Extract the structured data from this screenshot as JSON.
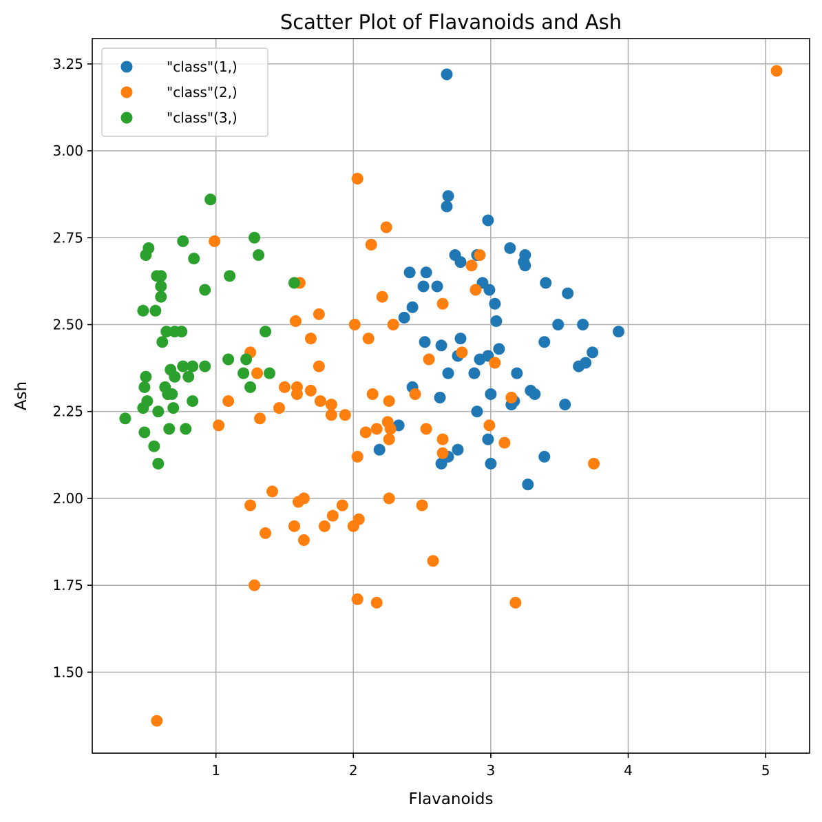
{
  "chart_data": {
    "type": "scatter",
    "title": "Scatter Plot of Flavanoids and Ash",
    "xlabel": "Flavanoids",
    "ylabel": "Ash",
    "xlim": [
      0.1,
      5.32
    ],
    "ylim": [
      1.267,
      3.323
    ],
    "xticks": [
      1,
      2,
      3,
      4,
      5
    ],
    "xtick_labels": [
      "1",
      "2",
      "3",
      "4",
      "5"
    ],
    "yticks": [
      1.5,
      1.75,
      2.0,
      2.25,
      2.5,
      2.75,
      3.0,
      3.25
    ],
    "ytick_labels": [
      "1.50",
      "1.75",
      "2.00",
      "2.25",
      "2.50",
      "2.75",
      "3.00",
      "3.25"
    ],
    "grid": true,
    "legend_position": "top-left",
    "series": [
      {
        "name": "\"class\"(1,)",
        "color": "#1f77b4",
        "points": [
          [
            2.68,
            3.22
          ],
          [
            2.69,
            2.87
          ],
          [
            2.68,
            2.84
          ],
          [
            2.98,
            2.8
          ],
          [
            3.14,
            2.72
          ],
          [
            3.25,
            2.7
          ],
          [
            2.74,
            2.7
          ],
          [
            2.9,
            2.7
          ],
          [
            2.78,
            2.68
          ],
          [
            3.24,
            2.68
          ],
          [
            3.25,
            2.67
          ],
          [
            2.41,
            2.65
          ],
          [
            2.53,
            2.65
          ],
          [
            2.94,
            2.62
          ],
          [
            3.4,
            2.62
          ],
          [
            2.51,
            2.61
          ],
          [
            2.61,
            2.61
          ],
          [
            2.99,
            2.6
          ],
          [
            3.56,
            2.59
          ],
          [
            3.03,
            2.56
          ],
          [
            2.43,
            2.55
          ],
          [
            2.37,
            2.52
          ],
          [
            3.04,
            2.51
          ],
          [
            3.49,
            2.5
          ],
          [
            3.67,
            2.5
          ],
          [
            3.93,
            2.48
          ],
          [
            2.78,
            2.46
          ],
          [
            2.52,
            2.45
          ],
          [
            3.39,
            2.45
          ],
          [
            2.64,
            2.44
          ],
          [
            3.06,
            2.43
          ],
          [
            3.74,
            2.42
          ],
          [
            2.76,
            2.41
          ],
          [
            2.98,
            2.41
          ],
          [
            2.92,
            2.4
          ],
          [
            3.69,
            2.39
          ],
          [
            3.64,
            2.38
          ],
          [
            2.69,
            2.36
          ],
          [
            2.88,
            2.36
          ],
          [
            3.19,
            2.36
          ],
          [
            2.43,
            2.32
          ],
          [
            3.29,
            2.31
          ],
          [
            3.0,
            2.3
          ],
          [
            3.32,
            2.3
          ],
          [
            2.63,
            2.29
          ],
          [
            3.17,
            2.28
          ],
          [
            3.15,
            2.27
          ],
          [
            3.54,
            2.27
          ],
          [
            2.9,
            2.25
          ],
          [
            2.33,
            2.21
          ],
          [
            2.98,
            2.17
          ],
          [
            2.19,
            2.14
          ],
          [
            2.76,
            2.14
          ],
          [
            3.39,
            2.12
          ],
          [
            2.69,
            2.12
          ],
          [
            2.64,
            2.1
          ],
          [
            3.0,
            2.1
          ],
          [
            3.27,
            2.04
          ]
        ]
      },
      {
        "name": "\"class\"(2,)",
        "color": "#ff7f0e",
        "points": [
          [
            5.08,
            3.23
          ],
          [
            2.03,
            2.92
          ],
          [
            2.24,
            2.78
          ],
          [
            0.99,
            2.74
          ],
          [
            2.13,
            2.73
          ],
          [
            2.92,
            2.7
          ],
          [
            2.86,
            2.67
          ],
          [
            1.61,
            2.62
          ],
          [
            2.89,
            2.6
          ],
          [
            2.21,
            2.58
          ],
          [
            2.65,
            2.56
          ],
          [
            1.75,
            2.53
          ],
          [
            1.58,
            2.51
          ],
          [
            2.01,
            2.5
          ],
          [
            2.29,
            2.5
          ],
          [
            1.69,
            2.46
          ],
          [
            2.11,
            2.46
          ],
          [
            2.79,
            2.42
          ],
          [
            1.25,
            2.42
          ],
          [
            2.55,
            2.4
          ],
          [
            3.03,
            2.39
          ],
          [
            1.75,
            2.38
          ],
          [
            1.3,
            2.36
          ],
          [
            1.5,
            2.32
          ],
          [
            1.59,
            2.32
          ],
          [
            1.69,
            2.31
          ],
          [
            1.59,
            2.3
          ],
          [
            2.14,
            2.3
          ],
          [
            2.45,
            2.3
          ],
          [
            3.15,
            2.29
          ],
          [
            1.09,
            2.28
          ],
          [
            1.76,
            2.28
          ],
          [
            2.26,
            2.28
          ],
          [
            1.84,
            2.27
          ],
          [
            1.46,
            2.26
          ],
          [
            1.84,
            2.24
          ],
          [
            1.94,
            2.24
          ],
          [
            1.32,
            2.23
          ],
          [
            2.25,
            2.22
          ],
          [
            1.02,
            2.21
          ],
          [
            2.99,
            2.21
          ],
          [
            2.27,
            2.2
          ],
          [
            2.17,
            2.2
          ],
          [
            2.53,
            2.2
          ],
          [
            2.09,
            2.19
          ],
          [
            2.65,
            2.17
          ],
          [
            2.26,
            2.17
          ],
          [
            3.1,
            2.16
          ],
          [
            2.65,
            2.13
          ],
          [
            2.03,
            2.12
          ],
          [
            3.75,
            2.1
          ],
          [
            1.41,
            2.02
          ],
          [
            1.64,
            2.0
          ],
          [
            2.26,
            2.0
          ],
          [
            1.6,
            1.99
          ],
          [
            1.92,
            1.98
          ],
          [
            1.25,
            1.98
          ],
          [
            2.5,
            1.98
          ],
          [
            1.85,
            1.95
          ],
          [
            2.04,
            1.94
          ],
          [
            1.57,
            1.92
          ],
          [
            1.79,
            1.92
          ],
          [
            2.0,
            1.92
          ],
          [
            1.36,
            1.9
          ],
          [
            1.64,
            1.88
          ],
          [
            2.58,
            1.82
          ],
          [
            1.28,
            1.75
          ],
          [
            2.03,
            1.71
          ],
          [
            2.17,
            1.7
          ],
          [
            3.18,
            1.7
          ],
          [
            0.57,
            1.36
          ]
        ]
      },
      {
        "name": "\"class\"(3,)",
        "color": "#2ca02c",
        "points": [
          [
            0.96,
            2.86
          ],
          [
            1.28,
            2.75
          ],
          [
            0.76,
            2.74
          ],
          [
            0.51,
            2.72
          ],
          [
            0.49,
            2.7
          ],
          [
            1.31,
            2.7
          ],
          [
            0.84,
            2.69
          ],
          [
            1.1,
            2.64
          ],
          [
            0.57,
            2.64
          ],
          [
            0.6,
            2.64
          ],
          [
            1.57,
            2.62
          ],
          [
            0.6,
            2.61
          ],
          [
            0.92,
            2.6
          ],
          [
            0.6,
            2.58
          ],
          [
            0.47,
            2.54
          ],
          [
            0.56,
            2.54
          ],
          [
            1.36,
            2.48
          ],
          [
            0.64,
            2.48
          ],
          [
            0.7,
            2.48
          ],
          [
            0.75,
            2.48
          ],
          [
            0.61,
            2.45
          ],
          [
            1.09,
            2.4
          ],
          [
            1.22,
            2.4
          ],
          [
            0.76,
            2.38
          ],
          [
            0.83,
            2.38
          ],
          [
            0.92,
            2.38
          ],
          [
            0.67,
            2.37
          ],
          [
            1.2,
            2.36
          ],
          [
            1.39,
            2.36
          ],
          [
            0.49,
            2.35
          ],
          [
            0.7,
            2.35
          ],
          [
            0.8,
            2.35
          ],
          [
            0.48,
            2.32
          ],
          [
            0.63,
            2.32
          ],
          [
            1.25,
            2.32
          ],
          [
            0.65,
            2.3
          ],
          [
            0.68,
            2.3
          ],
          [
            0.5,
            2.28
          ],
          [
            0.83,
            2.28
          ],
          [
            0.47,
            2.26
          ],
          [
            0.69,
            2.26
          ],
          [
            0.58,
            2.25
          ],
          [
            0.34,
            2.23
          ],
          [
            0.66,
            2.2
          ],
          [
            0.78,
            2.2
          ],
          [
            0.48,
            2.19
          ],
          [
            0.55,
            2.15
          ],
          [
            0.58,
            2.1
          ]
        ]
      }
    ]
  }
}
